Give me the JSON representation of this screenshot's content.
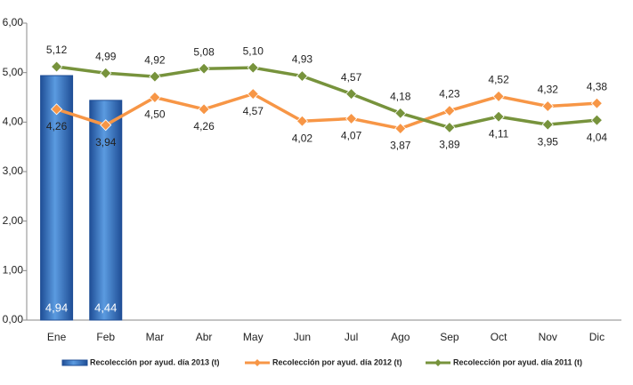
{
  "chart_data": {
    "type": "bar_line",
    "categories": [
      "Ene",
      "Feb",
      "Mar",
      "Abr",
      "May",
      "Jun",
      "Jul",
      "Ago",
      "Sep",
      "Oct",
      "Nov",
      "Dic"
    ],
    "series": [
      {
        "name": "Recolección por ayud. día 2013 (t)",
        "type": "bar",
        "color": "#2e6fc0",
        "values": [
          4.94,
          4.44,
          null,
          null,
          null,
          null,
          null,
          null,
          null,
          null,
          null,
          null
        ],
        "value_labels": [
          "4,94",
          "4,44",
          null,
          null,
          null,
          null,
          null,
          null,
          null,
          null,
          null,
          null
        ]
      },
      {
        "name": "Recolección por ayud. día 2012 (t)",
        "type": "line",
        "color": "#f79646",
        "values": [
          4.26,
          3.94,
          4.5,
          4.26,
          4.57,
          4.02,
          4.07,
          3.87,
          4.23,
          4.52,
          4.32,
          4.38
        ],
        "value_labels": [
          "4,26",
          "3,94",
          "4,50",
          "4,26",
          "4,57",
          "4,02",
          "4,07",
          "3,87",
          "4,23",
          "4,52",
          "4,32",
          "4,38"
        ]
      },
      {
        "name": "Recolección por ayud. día 2011 (t)",
        "type": "line",
        "color": "#77933c",
        "values": [
          5.12,
          4.99,
          4.92,
          5.08,
          5.1,
          4.93,
          4.57,
          4.18,
          3.89,
          4.11,
          3.95,
          4.04
        ],
        "value_labels": [
          "5,12",
          "4,99",
          "4,92",
          "5,08",
          "5,10",
          "4,93",
          "4,57",
          "4,18",
          "3,89",
          "4,11",
          "3,95",
          "4,04"
        ]
      }
    ],
    "ylim": [
      0,
      6
    ],
    "yticks": [
      {
        "value": 0,
        "label": "0,00"
      },
      {
        "value": 1,
        "label": "1,00"
      },
      {
        "value": 2,
        "label": "2,00"
      },
      {
        "value": 3,
        "label": "3,00"
      },
      {
        "value": 4,
        "label": "4,00"
      },
      {
        "value": 5,
        "label": "5,00"
      },
      {
        "value": 6,
        "label": "6,00"
      }
    ],
    "legend": "bottom"
  }
}
